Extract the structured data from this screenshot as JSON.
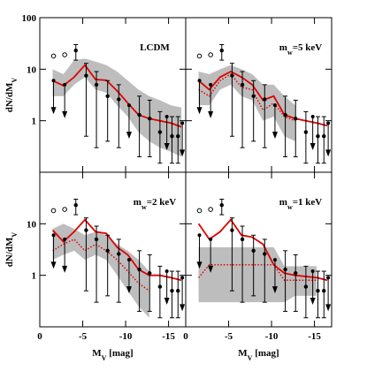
{
  "chart_data": [
    {
      "type": "line",
      "title": [
        "LCDM"
      ],
      "ylabel": [
        "dN/dM",
        "V"
      ],
      "show_yticks": true,
      "show_xticks": false,
      "xlim": [
        0,
        -17
      ],
      "ylim": [
        0.1,
        100
      ],
      "log_y": true,
      "xticks": [
        0,
        -5,
        -10,
        -15
      ],
      "yticks": [
        1,
        10,
        100
      ],
      "x": [
        -1.5,
        -2.75,
        -4,
        -5.25,
        -6.5,
        -7.75,
        -9,
        -10.25,
        -11.5,
        -12.75,
        -14,
        -15.25,
        -16.5
      ],
      "band": {
        "color": "#bdbdbd",
        "upper": [
          10,
          8,
          15,
          16,
          14,
          12,
          9,
          6,
          4,
          3,
          2.5,
          2,
          1.8
        ],
        "lower": [
          3,
          3,
          5,
          7,
          4,
          3.5,
          2,
          1.2,
          0.6,
          0.4,
          0.3,
          0.25,
          0.2
        ]
      },
      "series": [
        {
          "color": "#e00000",
          "style": "solid",
          "values": [
            6,
            4.8,
            7,
            12,
            6.3,
            6.1,
            3.8,
            2.2,
            1.3,
            1.1,
            1,
            0.9,
            0.76
          ]
        }
      ],
      "points": {
        "x": [
          -4.2,
          -5.4,
          -6.6,
          -7.9,
          -9.2,
          -11.6,
          -12.8,
          -14,
          -15.4,
          -16.1
        ],
        "values": [
          23,
          7.5,
          5,
          3,
          2.6,
          1.3,
          1.1,
          0.6,
          0.5,
          0.5
        ],
        "err_low": [
          15,
          0.5,
          0.3,
          0.4,
          0.3,
          0.2,
          0.2,
          0.15,
          0.15,
          0.15
        ],
        "err_high": [
          30,
          13,
          9,
          6,
          5,
          3,
          2.5,
          1.5,
          1.2,
          1.2
        ]
      },
      "limits": {
        "x": [
          -1.6,
          -2.9,
          -10.4,
          -14.8,
          -16.6
        ],
        "values": [
          6,
          5,
          2,
          1.2,
          0.9
        ]
      },
      "circles": {
        "x": [
          -1.6,
          -2.9
        ],
        "values": [
          18,
          19
        ]
      }
    },
    {
      "type": "line",
      "title": [
        "m",
        "w",
        "=5 keV"
      ],
      "show_yticks": false,
      "show_xticks": false,
      "xlim": [
        0,
        -17
      ],
      "ylim": [
        0.1,
        100
      ],
      "log_y": true,
      "xticks": [
        0,
        -5,
        -10,
        -15
      ],
      "yticks": [
        1,
        10,
        100
      ],
      "x": [
        -1.5,
        -2.75,
        -4,
        -5.25,
        -6.5,
        -7.75,
        -9,
        -10.25,
        -11.5,
        -12.75,
        -14,
        -15.25,
        -16.5
      ],
      "band": {
        "color": "#bdbdbd",
        "upper": [
          9,
          8,
          10,
          12,
          10,
          8,
          5,
          5,
          3,
          2,
          null,
          null,
          null
        ],
        "lower": [
          2,
          2,
          4,
          5,
          3,
          2.5,
          1,
          1.2,
          0.5,
          0.4,
          null,
          null,
          null
        ]
      },
      "series": [
        {
          "color": "#e00000",
          "style": "solid",
          "values": [
            6,
            4,
            7,
            9,
            7,
            5,
            2.5,
            3,
            1.3,
            1.1,
            1,
            0.9,
            0.8
          ]
        },
        {
          "color": "#e00000",
          "style": "dotted",
          "values": [
            4,
            3,
            6,
            8,
            4.5,
            4,
            1.6,
            2.2,
            1.2,
            1,
            null,
            null,
            null
          ]
        }
      ],
      "points": {
        "x": [
          -4.2,
          -5.4,
          -6.6,
          -7.9,
          -9.2,
          -11.6,
          -12.8,
          -14,
          -15.4,
          -16.1
        ],
        "values": [
          23,
          7.5,
          5,
          3,
          2.6,
          1.3,
          1.1,
          0.6,
          0.5,
          0.5
        ],
        "err_low": [
          15,
          0.5,
          0.3,
          0.4,
          0.3,
          0.2,
          0.2,
          0.15,
          0.15,
          0.15
        ],
        "err_high": [
          30,
          13,
          9,
          6,
          5,
          3,
          2.5,
          1.5,
          1.2,
          1.2
        ]
      },
      "limits": {
        "x": [
          -1.6,
          -2.9,
          -10.4,
          -14.8,
          -16.6
        ],
        "values": [
          6,
          5,
          2,
          1.2,
          0.9
        ]
      },
      "circles": {
        "x": [
          -1.6,
          -2.9
        ],
        "values": [
          18,
          19
        ]
      }
    },
    {
      "type": "line",
      "title": [
        "m",
        "w",
        "=2 keV"
      ],
      "ylabel": [
        "dN/dM",
        "V"
      ],
      "xlabel": [
        "M",
        "V",
        " [mag]"
      ],
      "show_yticks": true,
      "show_xticks": true,
      "xlim": [
        0,
        -17
      ],
      "ylim": [
        0.1,
        100
      ],
      "log_y": true,
      "xticks": [
        0,
        -5,
        -10,
        -15
      ],
      "yticks": [
        1,
        10
      ],
      "x": [
        -1.5,
        -2.75,
        -4,
        -5.25,
        -6.5,
        -7.75,
        -9,
        -10.25,
        -11.5,
        -12.75,
        -14,
        -15.25,
        -16.5
      ],
      "band": {
        "color": "#bdbdbd",
        "upper": [
          8,
          10,
          8,
          6,
          7,
          6,
          4,
          3,
          2,
          1.2,
          null,
          null,
          null
        ],
        "lower": [
          2,
          2.5,
          3,
          2,
          2.5,
          2,
          1,
          0.5,
          0.25,
          0.15,
          null,
          null,
          null
        ]
      },
      "series": [
        {
          "color": "#e00000",
          "style": "solid",
          "values": [
            7.5,
            4.5,
            7,
            12,
            7,
            6.5,
            3.5,
            2.5,
            1.3,
            1,
            1,
            0.9,
            0.8
          ]
        },
        {
          "color": "#e00000",
          "style": "dotted",
          "values": [
            3,
            4,
            5,
            3,
            4,
            3,
            2,
            1.2,
            0.7,
            0.5,
            null,
            null,
            null
          ]
        }
      ],
      "points": {
        "x": [
          -4.2,
          -5.4,
          -6.6,
          -7.9,
          -9.2,
          -11.6,
          -12.8,
          -14,
          -15.4,
          -16.1
        ],
        "values": [
          23,
          7.5,
          5,
          3,
          2.6,
          1.3,
          1.1,
          0.6,
          0.5,
          0.5
        ],
        "err_low": [
          15,
          0.5,
          0.3,
          0.4,
          0.3,
          0.2,
          0.2,
          0.15,
          0.15,
          0.15
        ],
        "err_high": [
          30,
          13,
          9,
          6,
          5,
          3,
          2.5,
          1.5,
          1.2,
          1.2
        ]
      },
      "limits": {
        "x": [
          -1.6,
          -2.9,
          -10.4,
          -14.8,
          -16.6
        ],
        "values": [
          6,
          5,
          2,
          1.2,
          0.9
        ]
      },
      "circles": {
        "x": [
          -1.6,
          -2.9
        ],
        "values": [
          18,
          19
        ]
      }
    },
    {
      "type": "line",
      "title": [
        "m",
        "w",
        "=1 keV"
      ],
      "xlabel": [
        "M",
        "V",
        " [mag]"
      ],
      "show_yticks": false,
      "show_xticks": true,
      "xlim": [
        0,
        -17
      ],
      "ylim": [
        0.1,
        100
      ],
      "log_y": true,
      "xticks": [
        0,
        -5,
        -10,
        -15
      ],
      "yticks": [
        1,
        10
      ],
      "x": [
        -1.5,
        -2.75,
        -4,
        -5.25,
        -6.5,
        -7.75,
        -9,
        -10.25,
        -11.5,
        -12.75,
        -14,
        -15.25,
        -16.5
      ],
      "band": {
        "color": "#bdbdbd",
        "upper": [
          3.5,
          3.5,
          3.5,
          3.5,
          3.5,
          3.5,
          3.5,
          3.5,
          1.5,
          1.5,
          1.5,
          1.5,
          null
        ],
        "lower": [
          0.3,
          0.3,
          0.3,
          0.3,
          0.3,
          0.3,
          0.3,
          0.3,
          0.3,
          0.4,
          0.4,
          0.4,
          null
        ]
      },
      "series": [
        {
          "color": "#e00000",
          "style": "solid",
          "values": [
            10,
            5,
            7,
            12,
            6,
            5.5,
            4,
            1.6,
            1.1,
            1,
            0.95,
            0.9,
            0.8
          ]
        },
        {
          "color": "#e00000",
          "style": "dotted",
          "values": [
            0.9,
            1.6,
            1.6,
            1.6,
            1.6,
            1.6,
            1.6,
            1.6,
            0.8,
            0.8,
            0.8,
            0.8,
            null
          ]
        }
      ],
      "points": {
        "x": [
          -4.2,
          -5.4,
          -6.6,
          -7.9,
          -9.2,
          -11.6,
          -12.8,
          -14,
          -15.4,
          -16.1
        ],
        "values": [
          23,
          7.5,
          5,
          3,
          2.6,
          1.3,
          1.1,
          0.6,
          0.5,
          0.5
        ],
        "err_low": [
          15,
          0.5,
          0.3,
          0.4,
          0.3,
          0.2,
          0.2,
          0.15,
          0.15,
          0.15
        ],
        "err_high": [
          30,
          13,
          9,
          6,
          5,
          3,
          2.5,
          1.5,
          1.2,
          1.2
        ]
      },
      "limits": {
        "x": [
          -1.6,
          -2.9,
          -10.4,
          -14.8,
          -16.6
        ],
        "values": [
          6,
          5,
          2,
          1.2,
          0.9
        ]
      },
      "circles": {
        "x": [
          -1.6,
          -2.9
        ],
        "values": [
          18,
          19
        ]
      }
    }
  ]
}
